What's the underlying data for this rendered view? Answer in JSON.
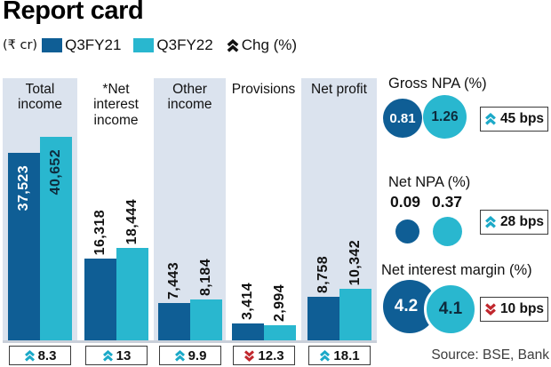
{
  "title": "Report card",
  "legend": {
    "unit": "(₹ cr)",
    "series": [
      {
        "label": "Q3FY21",
        "color": "#0f5e95"
      },
      {
        "label": "Q3FY22",
        "color": "#29b7cf"
      }
    ],
    "chg_label": "Chg (%)"
  },
  "chart_data": {
    "type": "bar",
    "unit": "₹ cr",
    "title": "Report card",
    "categories": [
      "Total income",
      "*Net interest income",
      "Other income",
      "Provisions",
      "Net profit"
    ],
    "series": [
      {
        "name": "Q3FY21",
        "color": "#0f5e95",
        "values": [
          37523,
          16318,
          7443,
          3414,
          8758
        ]
      },
      {
        "name": "Q3FY22",
        "color": "#29b7cf",
        "values": [
          40652,
          18444,
          8184,
          2994,
          10342
        ]
      }
    ],
    "value_labels": [
      [
        "37,523",
        "40,652"
      ],
      [
        "16,318",
        "18,444"
      ],
      [
        "7,443",
        "8,184"
      ],
      [
        "3,414",
        "2,994"
      ],
      [
        "8,758",
        "10,342"
      ]
    ],
    "changes": [
      {
        "label": "8.3",
        "direction": "up"
      },
      {
        "label": "13",
        "direction": "up"
      },
      {
        "label": "9.9",
        "direction": "up"
      },
      {
        "label": "12.3",
        "direction": "down"
      },
      {
        "label": "18.1",
        "direction": "up"
      }
    ]
  },
  "right_panel": {
    "sections": [
      {
        "title": "Gross NPA (%)",
        "q3fy21": "0.81",
        "q3fy22": "1.26",
        "change": "45 bps",
        "direction": "up"
      },
      {
        "title": "Net NPA (%)",
        "q3fy21": "0.09",
        "q3fy22": "0.37",
        "change": "28 bps",
        "direction": "up"
      },
      {
        "title": "Net interest margin (%)",
        "q3fy21": "4.2",
        "q3fy22": "4.1",
        "change": "10 bps",
        "direction": "down"
      }
    ]
  },
  "source": "Source: BSE, Bank",
  "colors": {
    "dark_blue": "#0f5e95",
    "cyan": "#29b7cf",
    "column_bg": "#dbe3ee",
    "up_chevron": "#1ba9c8",
    "down_chevron": "#c1272d"
  }
}
